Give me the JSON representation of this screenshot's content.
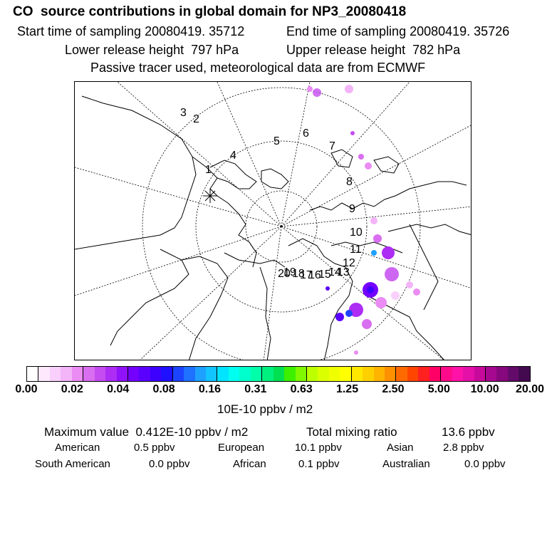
{
  "header": {
    "title": "CO  source contributions in global domain for NP3_20080418",
    "start_label": "Start time of sampling 20080419. 35712",
    "end_label": "End time of sampling 20080419. 35726",
    "lower_label": "Lower release height  797 hPa",
    "upper_label": "Upper release height  782 hPa",
    "tracer_label": "Passive tracer used, meteorological data are from ECMWF"
  },
  "map": {
    "track_labels": [
      "1",
      "2",
      "3",
      "4",
      "5",
      "6",
      "7",
      "8",
      "9",
      "10",
      "11",
      "12",
      "13",
      "14",
      "15",
      "16",
      "17",
      "18",
      "19",
      "20"
    ]
  },
  "colorbar": {
    "tick_labels": [
      "0.00",
      "0.02",
      "0.04",
      "0.08",
      "0.16",
      "0.31",
      "0.63",
      "1.25",
      "2.50",
      "5.00",
      "10.00",
      "20.00"
    ],
    "units": "10E-10 ppbv / m2",
    "colors": [
      "#ffffff",
      "#fde8fd",
      "#f9d0fb",
      "#f3b4f8",
      "#ea8cf3",
      "#d96ef0",
      "#c44cf0",
      "#ad2df5",
      "#8f12fa",
      "#7400ff",
      "#5a00ff",
      "#3d00ff",
      "#1f10ff",
      "#1c44ff",
      "#1e72ff",
      "#1ea0ff",
      "#12c4ff",
      "#00e4ff",
      "#00fff0",
      "#00ffcc",
      "#00ffa8",
      "#00f080",
      "#00e050",
      "#3cf000",
      "#80f800",
      "#bdff00",
      "#dcff00",
      "#f0ff00",
      "#ffff00",
      "#ffe800",
      "#ffd000",
      "#ffb400",
      "#ff9000",
      "#ff6a00",
      "#ff4500",
      "#ff2020",
      "#ff0066",
      "#ff0a8a",
      "#ff12a8",
      "#e410a8",
      "#c80a9c",
      "#a60890",
      "#86087c",
      "#640a6a",
      "#440a50"
    ]
  },
  "stats": {
    "max_label": "Maximum value  0.412E-10 ppbv / m2",
    "total_label": "Total mixing ratio",
    "total_value": "13.6 ppbv"
  },
  "regions": [
    {
      "name": "American",
      "value": "0.5 ppbv"
    },
    {
      "name": "European",
      "value": "10.1 ppbv"
    },
    {
      "name": "Asian",
      "value": "2.8 ppbv"
    },
    {
      "name": "South American",
      "value": "0.0 ppbv"
    },
    {
      "name": "African",
      "value": "0.1 ppbv"
    },
    {
      "name": "Australian",
      "value": "0.0 ppbv"
    }
  ]
}
